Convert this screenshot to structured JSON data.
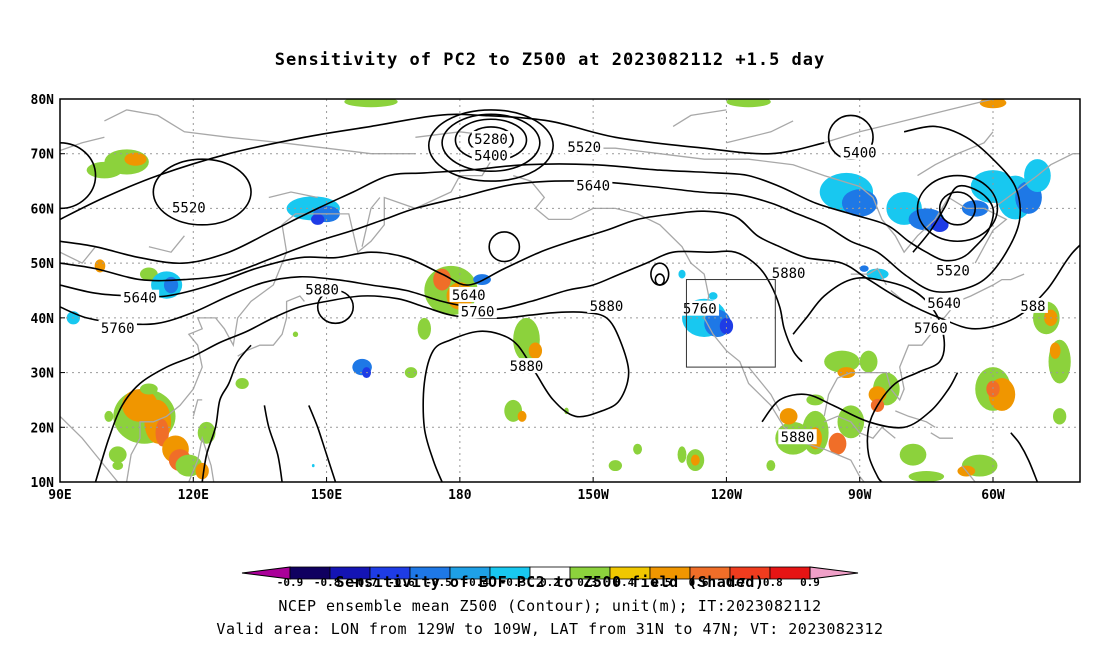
{
  "title": "Sensitivity of PC2 to Z500 at 2023082112 +1.5 day",
  "axes": {
    "lat_labels": [
      "80N",
      "70N",
      "60N",
      "50N",
      "40N",
      "30N",
      "20N",
      "10N"
    ],
    "lon_labels": [
      "90E",
      "120E",
      "150E",
      "180",
      "150W",
      "120W",
      "90W",
      "60W"
    ]
  },
  "contour_labels": [
    {
      "text": "5280",
      "lon": -173,
      "lat": 72.5
    },
    {
      "text": "5400",
      "lon": -173,
      "lat": 69.5
    },
    {
      "text": "5520",
      "lon": -152,
      "lat": 71
    },
    {
      "text": "5640",
      "lon": -150,
      "lat": 64
    },
    {
      "text": "5520",
      "lon": 119,
      "lat": 60
    },
    {
      "text": "5640",
      "lon": 108,
      "lat": 43.5
    },
    {
      "text": "5760",
      "lon": 103,
      "lat": 38
    },
    {
      "text": "5880",
      "lon": 149,
      "lat": 45
    },
    {
      "text": "5640",
      "lon": -178,
      "lat": 44
    },
    {
      "text": "5760",
      "lon": -176,
      "lat": 41
    },
    {
      "text": "5880",
      "lon": -147,
      "lat": 42
    },
    {
      "text": "5760",
      "lon": -126,
      "lat": 41.5
    },
    {
      "text": "5880",
      "lon": -165,
      "lat": 31
    },
    {
      "text": "5880",
      "lon": -106,
      "lat": 48
    },
    {
      "text": "5400",
      "lon": -90,
      "lat": 70
    },
    {
      "text": "5520",
      "lon": -69,
      "lat": 48.5
    },
    {
      "text": "5640",
      "lon": -71,
      "lat": 42.5
    },
    {
      "text": "5760",
      "lon": -74,
      "lat": 38
    },
    {
      "text": "5880",
      "lon": -104,
      "lat": 18
    },
    {
      "text": "588",
      "lon": -51,
      "lat": 42
    }
  ],
  "valid_area": {
    "lon_from": "129W",
    "lon_to": "109W",
    "lat_from": "31N",
    "lat_to": "47N"
  },
  "colorbar": {
    "ticks": [
      "-0.9",
      "-0.8",
      "-0.7",
      "-0.6",
      "-0.5",
      "-0.4",
      "-0.3",
      "0.2",
      "0.3",
      "0.4",
      "0.5",
      "0.6",
      "0.7",
      "0.8",
      "0.9"
    ],
    "colors": [
      "#aa0099",
      "#100060",
      "#1414b4",
      "#1e3ce6",
      "#1e78e6",
      "#1ea0e6",
      "#18c8f0",
      "#ffffff",
      "#8cd23c",
      "#f0c800",
      "#f09600",
      "#f06e28",
      "#f03c1e",
      "#e61414",
      "#f0a0c8"
    ],
    "title": "Sensitivity of EOF PC2 to Z500 field (Shaded)"
  },
  "footer": {
    "line1": "NCEP ensemble mean Z500 (Contour); unit(m); IT:2023082112",
    "line2": "Valid area: LON from 129W to 109W, LAT from 31N to 47N; VT: 2023082312"
  }
}
